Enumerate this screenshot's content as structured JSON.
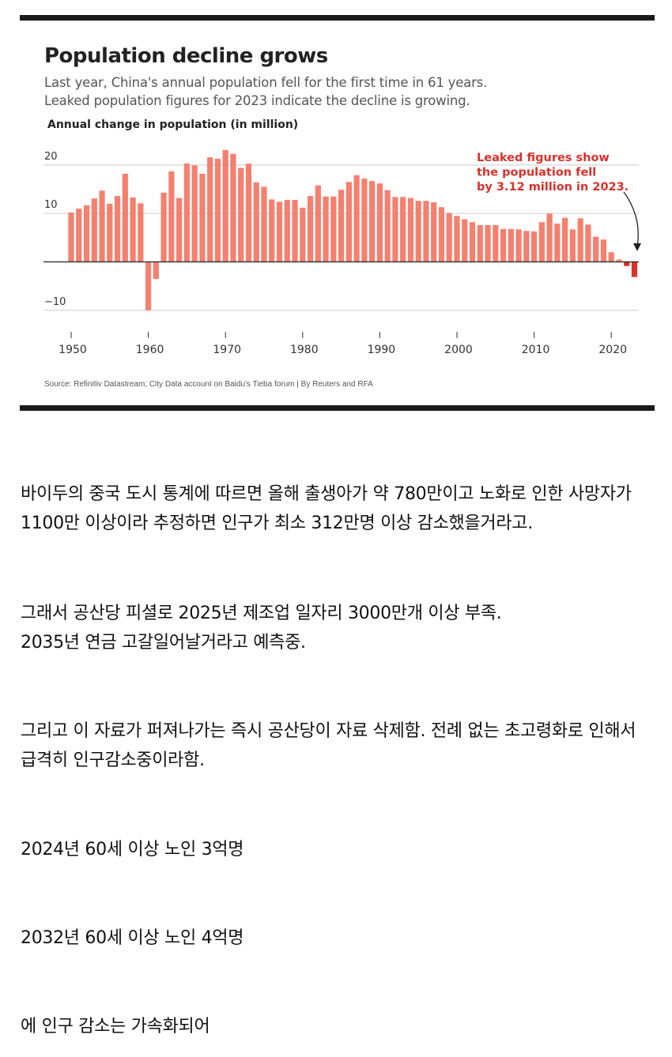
{
  "chart_data": {
    "type": "bar",
    "title": "Population decline grows",
    "subtitle": [
      "Last year, China's annual population fell for the first time in 61 years.",
      "Leaked population figures for 2023 indicate the decline is growing."
    ],
    "ylabel": "Annual change in population (in million)",
    "xlabel": "",
    "ylim": [
      -10,
      23
    ],
    "yticks": [
      20,
      10,
      0,
      -10
    ],
    "ytick_labels": [
      "20",
      "10",
      "",
      "−10"
    ],
    "xticks": [
      1950,
      1960,
      1970,
      1980,
      1990,
      2000,
      2010,
      2020
    ],
    "grid": true,
    "x_start": 1950,
    "values": [
      10.2,
      11.0,
      11.7,
      13.1,
      14.7,
      12.0,
      13.6,
      18.2,
      13.3,
      12.1,
      -10.0,
      -3.5,
      14.3,
      18.7,
      13.2,
      20.3,
      19.9,
      18.2,
      21.6,
      21.3,
      23.1,
      22.3,
      19.4,
      20.3,
      16.4,
      15.5,
      12.9,
      12.4,
      12.8,
      12.8,
      11.2,
      13.6,
      15.8,
      13.5,
      13.5,
      14.9,
      16.5,
      17.9,
      17.2,
      16.7,
      16.2,
      14.8,
      13.4,
      13.4,
      13.2,
      12.6,
      12.6,
      12.3,
      11.3,
      10.1,
      9.5,
      8.8,
      8.2,
      7.6,
      7.6,
      7.6,
      6.8,
      6.8,
      6.7,
      6.4,
      6.3,
      8.2,
      10.0,
      7.9,
      9.1,
      6.7,
      9.0,
      7.7,
      5.2,
      4.6,
      2.0,
      0.5,
      -0.85,
      -3.12
    ],
    "highlight_years": [
      2022,
      2023
    ],
    "annotation": [
      "Leaked figures show",
      "the population fell",
      "by 3.12 million in 2023."
    ],
    "source": "Source: Refinitiv Datastream; City Data account on Baidu's Tieba forum | By Reuters and RFA",
    "colors": {
      "bar": "#f4806f",
      "highlight": "#d8322a",
      "annotation": "#d9312b"
    }
  },
  "article": [
    "바이두의 중국 도시 통계에 따르면 올해 출생아가 약 780만이고 노화로 인한 사망자가 1100만 이상이라 추정하면 인구가 최소 312만명 이상 감소했을거라고.",
    "그래서 공산당 피셜로 2025년 제조업 일자리 3000만개 이상 부족.",
    "2035년 연금 고갈일어날거라고 예측중.",
    "그리고 이 자료가 퍼져나가는 즉시 공산당이 자료 삭제함. 전례 없는 초고령화로 인해서 급격히 인구감소중이라함.",
    "2024년 60세 이상 노인 3억명",
    "2032년 60세 이상 노인 4억명",
    "에 인구 감소는 가속화되어"
  ]
}
